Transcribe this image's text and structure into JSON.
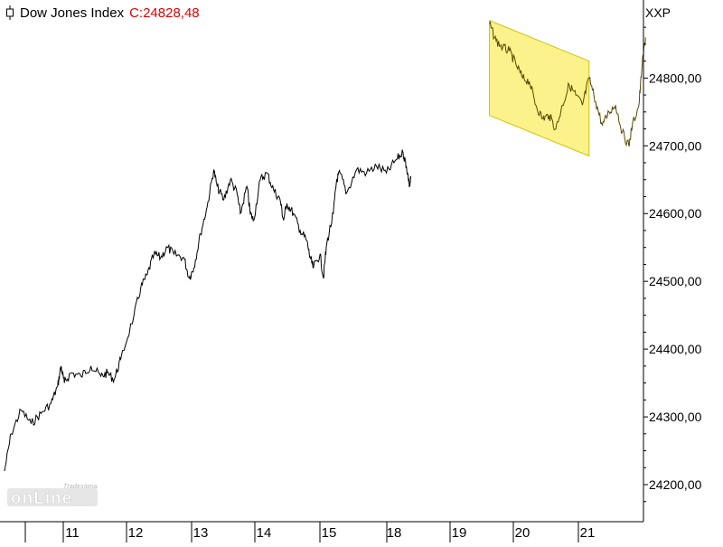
{
  "header": {
    "title": "Dow Jones Index",
    "close_label": "C:",
    "close_value": "24828,48",
    "icon": "candlestick-icon"
  },
  "symbol": "XXP",
  "logo": {
    "main": "onLine",
    "sub": "Tradesignal®"
  },
  "colors": {
    "price_line": "#000000",
    "channel_fill": "#fbf28c",
    "channel_line": "#d4c200",
    "close": "#e00000",
    "highlight_line": "#5a4a00"
  },
  "chart_data": {
    "type": "line",
    "title": "Dow Jones Index",
    "xlabel": "",
    "ylabel": "",
    "x_ticks": [
      "11",
      "12",
      "13",
      "14",
      "15",
      "18",
      "19",
      "20",
      "21"
    ],
    "y_ticks": [
      "24200,00",
      "24300,00",
      "24400,00",
      "24500,00",
      "24600,00",
      "24700,00",
      "24800,00"
    ],
    "ylim": [
      24150,
      24905
    ],
    "grid": false,
    "series": [
      {
        "points": [
          [
            10.0,
            24220
          ],
          [
            10.1,
            24275
          ],
          [
            10.25,
            24310
          ],
          [
            10.4,
            24290
          ],
          [
            10.55,
            24305
          ],
          [
            10.7,
            24320
          ],
          [
            10.8,
            24345
          ],
          [
            10.85,
            24375
          ],
          [
            10.9,
            24350
          ],
          [
            11.0,
            24365
          ],
          [
            11.15,
            24360
          ],
          [
            11.3,
            24375
          ],
          [
            11.45,
            24360
          ],
          [
            11.55,
            24365
          ],
          [
            11.65,
            24355
          ],
          [
            11.75,
            24385
          ],
          [
            11.95,
            24450
          ],
          [
            12.05,
            24490
          ],
          [
            12.15,
            24510
          ],
          [
            12.25,
            24540
          ],
          [
            12.35,
            24535
          ],
          [
            12.45,
            24550
          ],
          [
            12.55,
            24540
          ],
          [
            12.7,
            24535
          ],
          [
            12.78,
            24505
          ],
          [
            12.85,
            24520
          ],
          [
            12.95,
            24570
          ],
          [
            13.05,
            24610
          ],
          [
            13.15,
            24665
          ],
          [
            13.2,
            24640
          ],
          [
            13.3,
            24620
          ],
          [
            13.4,
            24650
          ],
          [
            13.5,
            24630
          ],
          [
            13.55,
            24600
          ],
          [
            13.65,
            24640
          ],
          [
            13.7,
            24600
          ],
          [
            13.75,
            24590
          ],
          [
            13.85,
            24650
          ],
          [
            13.95,
            24660
          ],
          [
            14.05,
            24635
          ],
          [
            14.15,
            24620
          ],
          [
            14.2,
            24590
          ],
          [
            14.25,
            24615
          ],
          [
            14.35,
            24600
          ],
          [
            14.45,
            24575
          ],
          [
            14.55,
            24560
          ],
          [
            14.6,
            24535
          ],
          [
            14.65,
            24520
          ],
          [
            14.75,
            24540
          ],
          [
            14.8,
            24505
          ],
          [
            14.85,
            24555
          ],
          [
            14.95,
            24600
          ],
          [
            15.0,
            24650
          ],
          [
            15.05,
            24660
          ],
          [
            15.15,
            24630
          ],
          [
            15.3,
            24665
          ],
          [
            15.45,
            24660
          ],
          [
            15.6,
            24670
          ],
          [
            15.75,
            24660
          ],
          [
            15.9,
            24680
          ],
          [
            16.0,
            24690
          ],
          [
            16.05,
            24670
          ],
          [
            16.1,
            24640
          ],
          [
            16.12,
            24655
          ],
          [
            17.3,
            24880
          ],
          [
            17.4,
            24855
          ],
          [
            17.5,
            24845
          ],
          [
            17.6,
            24840
          ],
          [
            17.7,
            24820
          ],
          [
            17.8,
            24800
          ],
          [
            17.9,
            24795
          ],
          [
            18.0,
            24760
          ],
          [
            18.1,
            24740
          ],
          [
            18.2,
            24745
          ],
          [
            18.3,
            24725
          ],
          [
            18.4,
            24760
          ],
          [
            18.5,
            24790
          ],
          [
            18.6,
            24775
          ],
          [
            18.7,
            24760
          ],
          [
            18.8,
            24800
          ],
          [
            18.9,
            24765
          ],
          [
            19.0,
            24730
          ],
          [
            19.1,
            24750
          ],
          [
            19.2,
            24760
          ],
          [
            19.3,
            24720
          ],
          [
            19.4,
            24700
          ],
          [
            19.45,
            24730
          ],
          [
            19.55,
            24760
          ],
          [
            19.6,
            24820
          ],
          [
            19.65,
            24860
          ]
        ]
      }
    ],
    "channel": {
      "upper": [
        [
          17.3,
          24885
        ],
        [
          18.8,
          24825
        ]
      ],
      "lower": [
        [
          17.3,
          24745
        ],
        [
          18.8,
          24685
        ]
      ]
    }
  }
}
